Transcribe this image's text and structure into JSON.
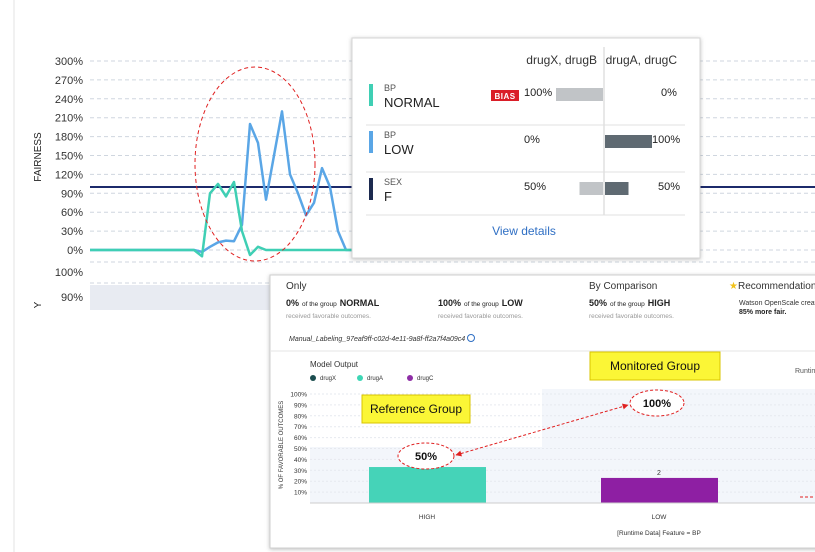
{
  "fairness_chart": {
    "y_label": "FAIRNESS",
    "ylim": [
      0,
      300
    ],
    "yticks": [
      {
        "value": 0,
        "label": "0%"
      },
      {
        "value": 30,
        "label": "30%"
      },
      {
        "value": 60,
        "label": "60%"
      },
      {
        "value": 90,
        "label": "90%"
      },
      {
        "value": 120,
        "label": "120%"
      },
      {
        "value": 150,
        "label": "150%"
      },
      {
        "value": 180,
        "label": "180%"
      },
      {
        "value": 210,
        "label": "210%"
      },
      {
        "value": 240,
        "label": "240%"
      },
      {
        "value": 270,
        "label": "270%"
      },
      {
        "value": 300,
        "label": "300%"
      }
    ],
    "threshold": 100,
    "series": [
      {
        "color": "#5aa6e6",
        "values": [
          0,
          0,
          0,
          0,
          0,
          0,
          0,
          0,
          0,
          0,
          0,
          0,
          0,
          0,
          -3,
          5,
          12,
          15,
          14,
          40,
          200,
          170,
          80,
          150,
          220,
          120,
          90,
          55,
          75,
          130,
          100,
          30,
          0,
          0
        ]
      },
      {
        "color": "#3fcfb4",
        "values": [
          0,
          0,
          0,
          0,
          0,
          0,
          0,
          0,
          0,
          0,
          0,
          0,
          0,
          0,
          -10,
          90,
          105,
          85,
          108,
          30,
          -8,
          5,
          0,
          0,
          0,
          0,
          0,
          0,
          0,
          0,
          0,
          0,
          0,
          0
        ]
      }
    ],
    "rows": [
      "100%",
      "90%"
    ],
    "row_axis_label": "Y"
  },
  "popup": {
    "columns": [
      "drugX, drugB",
      "drugA, drugC"
    ],
    "rows": [
      {
        "attribute": "BP",
        "group": "NORMAL",
        "color": "#3fcfb4",
        "bias": "BIAS",
        "values": [
          100,
          0
        ],
        "value_labels": [
          "100%",
          "0%"
        ]
      },
      {
        "attribute": "BP",
        "group": "LOW",
        "color": "#5aa6e6",
        "values": [
          0,
          100
        ],
        "value_labels": [
          "0%",
          "100%"
        ]
      },
      {
        "attribute": "SEX",
        "group": "F",
        "color": "#1c2a4f",
        "values": [
          50,
          50
        ],
        "value_labels": [
          "50%",
          "50%"
        ]
      }
    ],
    "link": "View details"
  },
  "details": {
    "headers": [
      "Only",
      "By Comparison",
      "Recommendation"
    ],
    "summaries": [
      {
        "value": 0,
        "label": "0%",
        "text": "of the group",
        "group": "NORMAL",
        "note": "received favorable outcomes."
      },
      {
        "value": 100,
        "label": "100%",
        "text": "of the group",
        "group": "LOW",
        "note": "received favorable outcomes."
      },
      {
        "value": 50,
        "label": "50%",
        "text": "of the group",
        "group": "HIGH",
        "note": "received favorable outcomes."
      }
    ],
    "recommendation": [
      "Watson OpenScale create",
      "85% more fair."
    ],
    "deployment": "Manual_Labeling_97eaf9ff-c02d-4e11-9a8f-ff2a7f4a09c4",
    "chart": {
      "title": "Model Output",
      "legend": [
        {
          "name": "drugX",
          "color": "#1b4d4f"
        },
        {
          "name": "drugA",
          "color": "#3dd6b5"
        },
        {
          "name": "drugC",
          "color": "#8e2ea6"
        }
      ],
      "y_label": "% OF FAVORABLE OUTCOMES",
      "ylim": [
        0,
        100
      ],
      "yticks": [
        {
          "value": 10,
          "label": "10%"
        },
        {
          "value": 20,
          "label": "20%"
        },
        {
          "value": 30,
          "label": "30%"
        },
        {
          "value": 40,
          "label": "40%"
        },
        {
          "value": 50,
          "label": "50%"
        },
        {
          "value": 60,
          "label": "60%"
        },
        {
          "value": 70,
          "label": "70%"
        },
        {
          "value": 80,
          "label": "80%"
        },
        {
          "value": 90,
          "label": "90%"
        },
        {
          "value": 100,
          "label": "100%"
        }
      ],
      "categories": [
        "HIGH",
        "LOW"
      ],
      "values": [
        33,
        23
      ],
      "colors": [
        "#45d3b8",
        "#8e1fa3"
      ],
      "counts": [
        null,
        2
      ],
      "x_label": "[Runtime Data] Feature = BP",
      "side_label": "Runtime"
    },
    "annotations": {
      "reference": "Reference Group",
      "monitored": "Monitored Group",
      "reference_value": "50%",
      "monitored_value": "100%"
    }
  }
}
